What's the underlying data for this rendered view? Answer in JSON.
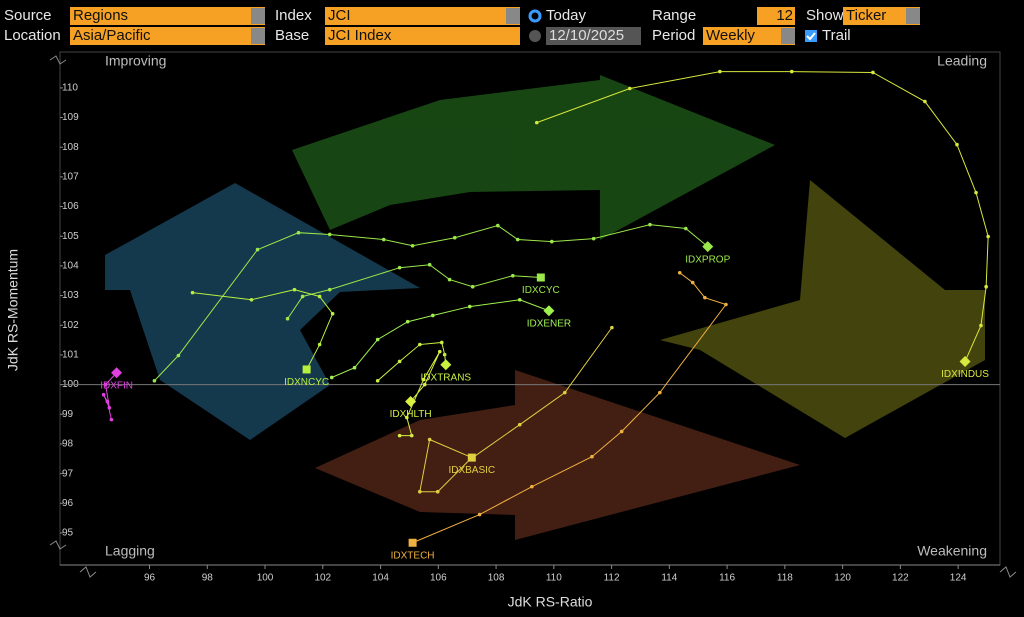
{
  "controls": {
    "source_label": "Source",
    "source": "Regions",
    "location_label": "Location",
    "location": "Asia/Pacific",
    "index_label": "Index",
    "index": "JCI",
    "base_label": "Base",
    "base": "JCI Index",
    "today": "Today",
    "date": "12/10/2025",
    "range_label": "Range",
    "range": "12",
    "period_label": "Period",
    "period": "Weekly",
    "show_label": "Show",
    "show": "Ticker",
    "trail": "Trail"
  },
  "chart_data": {
    "type": "line",
    "x_label": "JdK RS-Ratio",
    "y_label": "JdK RS-Momentum",
    "quadrants": {
      "top_left": "Improving",
      "top_right": "Leading",
      "bottom_left": "Lagging",
      "bottom_right": "Weakening"
    },
    "xlim": [
      92.9,
      125.45
    ],
    "ylim": [
      93.92,
      111.21
    ],
    "xticks": [
      96,
      98,
      100,
      102,
      104,
      106,
      108,
      110,
      112,
      114,
      116,
      118,
      120,
      122,
      124
    ],
    "yticks": [
      95,
      96,
      97,
      98,
      99,
      100,
      101,
      102,
      103,
      104,
      105,
      106,
      107,
      108,
      109,
      110
    ],
    "reference_line_y": 100,
    "series": [
      {
        "name": "IDXINDUS",
        "color": "#d8e83c",
        "marker": "diamond",
        "x": [
          109.41,
          112.63,
          115.75,
          118.24,
          121.05,
          122.85,
          123.96,
          124.62,
          125.04,
          124.97,
          124.79,
          124.24
        ],
        "values": [
          108.83,
          109.98,
          110.55,
          110.55,
          110.52,
          109.54,
          108.09,
          106.47,
          104.99,
          103.3,
          101.99,
          100.78
        ]
      },
      {
        "name": "IDXPROP",
        "color": "#9be84a",
        "marker": "diamond",
        "x": [
          96.17,
          97.0,
          99.74,
          101.16,
          102.24,
          104.11,
          105.11,
          106.57,
          108.06,
          108.75,
          109.93,
          111.38,
          113.33,
          114.57,
          115.33
        ],
        "values": [
          100.13,
          100.98,
          104.55,
          105.12,
          105.06,
          104.89,
          104.68,
          104.95,
          105.36,
          104.89,
          104.82,
          104.92,
          105.39,
          105.26,
          104.65
        ]
      },
      {
        "name": "IDXCYC",
        "color": "#9be84a",
        "marker": "square",
        "x": [
          100.78,
          101.3,
          102.24,
          104.66,
          105.7,
          106.39,
          107.19,
          108.58,
          109.55
        ],
        "values": [
          102.22,
          102.97,
          103.2,
          103.94,
          104.04,
          103.54,
          103.3,
          103.67,
          103.61
        ]
      },
      {
        "name": "IDXNCYC",
        "color": "#b8f040",
        "marker": "square",
        "x": [
          97.49,
          99.53,
          101.02,
          101.89,
          102.34,
          101.89,
          101.44
        ],
        "values": [
          103.1,
          102.86,
          103.2,
          102.97,
          102.39,
          101.35,
          100.51
        ]
      },
      {
        "name": "IDXENER",
        "color": "#a0f050",
        "marker": "diamond",
        "x": [
          102.31,
          103.1,
          103.9,
          104.94,
          105.81,
          107.09,
          108.82,
          109.83
        ],
        "values": [
          100.24,
          100.57,
          101.52,
          102.12,
          102.33,
          102.63,
          102.86,
          102.49
        ]
      },
      {
        "name": "IDXTRANS",
        "color": "#c8f040",
        "marker": "diamond",
        "x": [
          103.9,
          104.66,
          105.36,
          106.12,
          106.22,
          106.26
        ],
        "values": [
          100.13,
          100.78,
          101.35,
          101.42,
          101.01,
          100.67
        ]
      },
      {
        "name": "IDXHLTH",
        "color": "#d8f040",
        "marker": "diamond",
        "x": [
          104.66,
          105.08,
          104.91,
          105.49,
          106.05,
          105.53,
          105.04
        ],
        "values": [
          98.28,
          98.28,
          98.89,
          100.17,
          101.11,
          100.0,
          99.43
        ]
      },
      {
        "name": "IDXBASIC",
        "color": "#e0d040",
        "marker": "square",
        "x": [
          112.01,
          110.38,
          108.82,
          107.09,
          105.98,
          105.36,
          105.7,
          107.16
        ],
        "values": [
          101.92,
          99.73,
          98.65,
          97.47,
          96.39,
          96.39,
          98.15,
          97.54
        ]
      },
      {
        "name": "IDXTECH",
        "color": "#f0b040",
        "marker": "square",
        "x": [
          114.36,
          114.81,
          115.23,
          115.96,
          113.67,
          112.35,
          111.32,
          109.24,
          107.43,
          105.11
        ],
        "values": [
          103.77,
          103.44,
          102.93,
          102.7,
          99.73,
          98.42,
          97.57,
          96.56,
          95.62,
          94.67
        ]
      },
      {
        "name": "IDXFIN",
        "color": "#e040e0",
        "marker": "diamond",
        "x": [
          94.68,
          94.54,
          94.41,
          94.61,
          94.48,
          94.86
        ],
        "values": [
          98.82,
          99.43,
          99.66,
          99.22,
          100.0,
          100.4
        ]
      }
    ]
  }
}
